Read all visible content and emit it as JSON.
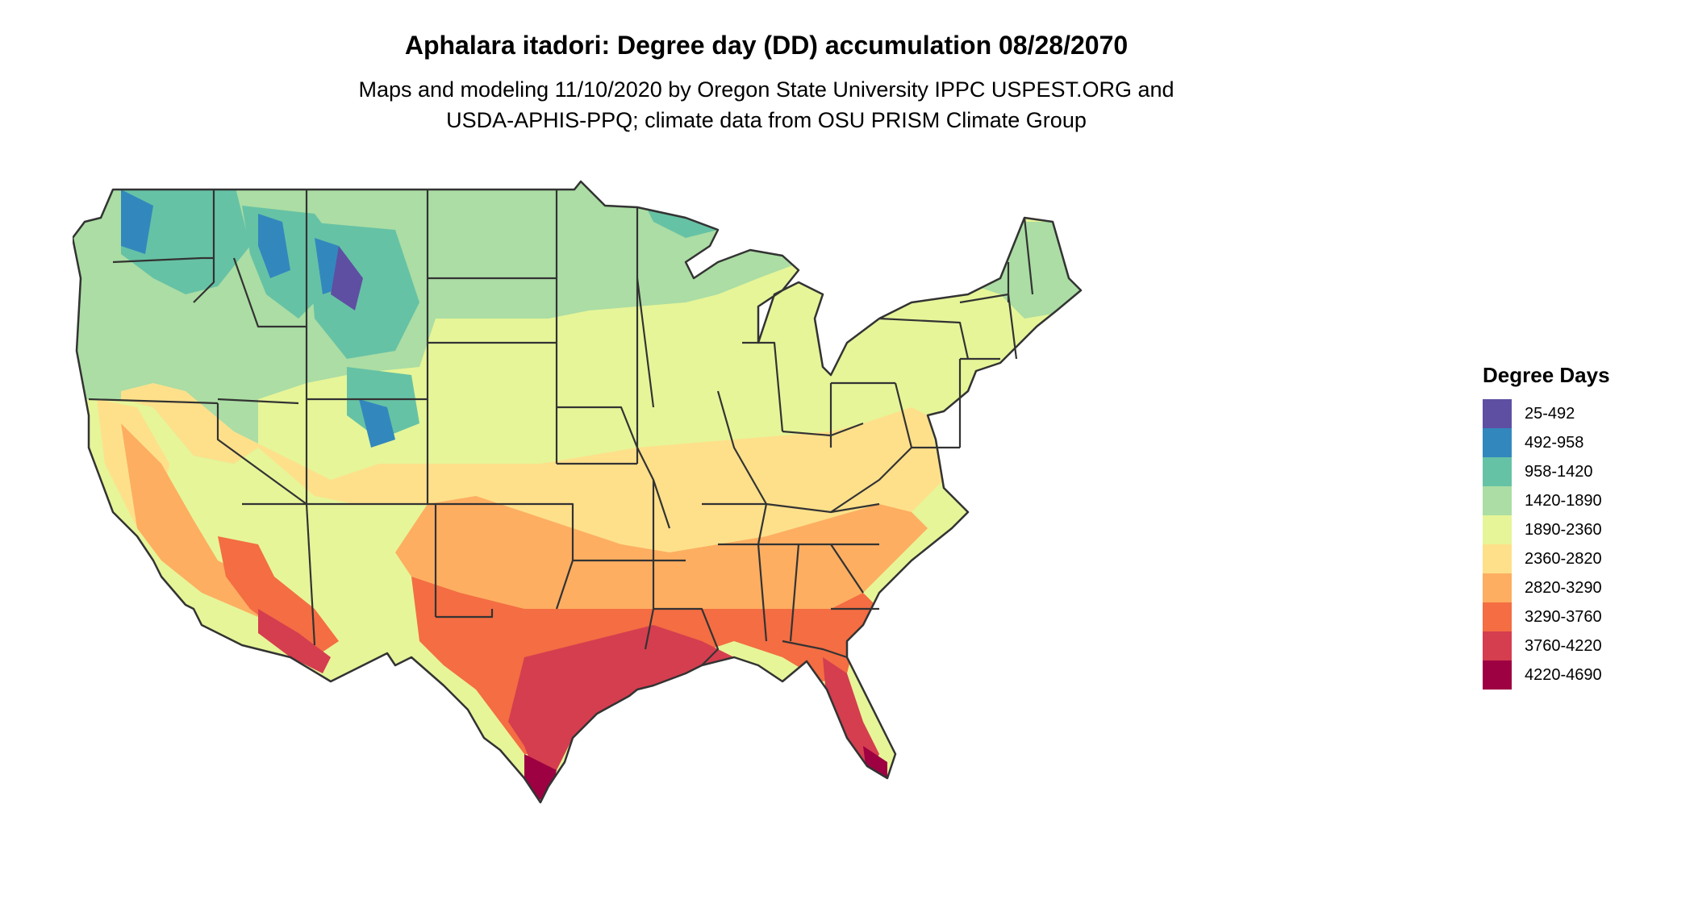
{
  "title": "Aphalara itadori: Degree day (DD) accumulation 08/28/2070",
  "subtitle_line1": "Maps and modeling 11/10/2020 by Oregon State University IPPC USPEST.ORG and",
  "subtitle_line2": "USDA-APHIS-PPQ; climate data from OSU PRISM Climate Group",
  "legend": {
    "title": "Degree Days",
    "items": [
      {
        "label": "25-492",
        "color": "#5e4fa2"
      },
      {
        "label": "492-958",
        "color": "#3288bd"
      },
      {
        "label": "958-1420",
        "color": "#66c2a5"
      },
      {
        "label": "1420-1890",
        "color": "#abdda4"
      },
      {
        "label": "1890-2360",
        "color": "#e6f598"
      },
      {
        "label": "2360-2820",
        "color": "#fee08b"
      },
      {
        "label": "2820-3290",
        "color": "#fdae61"
      },
      {
        "label": "3290-3760",
        "color": "#f46d43"
      },
      {
        "label": "3760-4220",
        "color": "#d53e4f"
      },
      {
        "label": "4220-4690",
        "color": "#9e0142"
      }
    ]
  }
}
